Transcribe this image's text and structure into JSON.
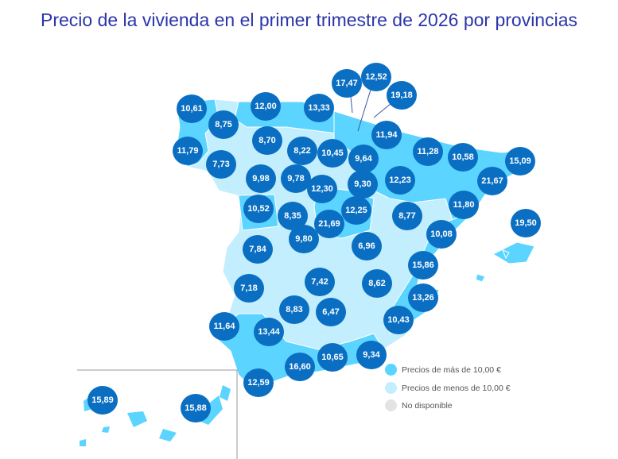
{
  "title": "Precio de la vivienda en el primer trimestre de 2026 por provincias",
  "colors": {
    "above": "#5bd4ff",
    "below": "#c2eefe",
    "na": "#e3e3e3",
    "marker": "#0a6fc2"
  },
  "legend": [
    {
      "label": "Precios de más de 10,00 €",
      "color": "#5bd4ff"
    },
    {
      "label": "Precios de menos de 10,00 €",
      "color": "#c2eefe"
    },
    {
      "label": "No disponible",
      "color": "#e3e3e3"
    }
  ],
  "values": [
    "10,61",
    "8,75",
    "12,00",
    "13,33",
    "17,47",
    "12,52",
    "19,18",
    "11,79",
    "7,73",
    "8,70",
    "8,22",
    "10,45",
    "9,64",
    "11,94",
    "11,28",
    "10,58",
    "15,09",
    "21,67",
    "9,98",
    "9,78",
    "12,30",
    "9,30",
    "12,23",
    "11,80",
    "10,52",
    "8,35",
    "21,69",
    "12,25",
    "8,77",
    "10,08",
    "19,50",
    "7,84",
    "9,80",
    "6,96",
    "15,86",
    "7,18",
    "7,42",
    "8,62",
    "13,26",
    "8,83",
    "6,47",
    "10,43",
    "11,64",
    "13,44",
    "10,65",
    "9,34",
    "16,60",
    "12,59",
    "15,89",
    "15,88"
  ]
}
